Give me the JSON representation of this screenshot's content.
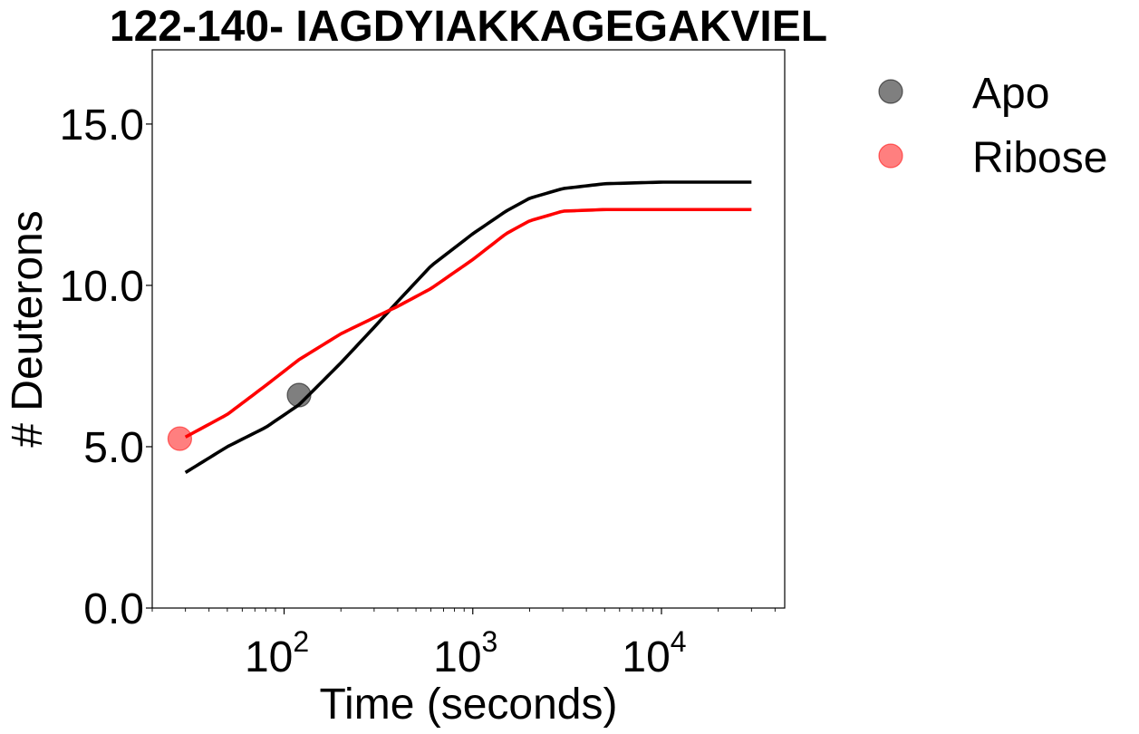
{
  "chart_data": {
    "type": "line",
    "title": "122-140- IAGDYIAKKAGEGAKVIEL",
    "xlabel": "Time (seconds)",
    "ylabel": "# Deuterons",
    "xscale": "log",
    "xlim": [
      20,
      45000
    ],
    "ylim": [
      0,
      17.3
    ],
    "xticks": [
      100,
      1000,
      10000
    ],
    "xtick_labels": [
      {
        "base": "10",
        "exp": "2"
      },
      {
        "base": "10",
        "exp": "3"
      },
      {
        "base": "10",
        "exp": "4"
      }
    ],
    "yticks": [
      0,
      5,
      10,
      15
    ],
    "ytick_labels": [
      "0.0",
      "5.0",
      "10.0",
      "15.0"
    ],
    "grid": false,
    "legend_placement": "outside-right",
    "series": [
      {
        "name": "Apo",
        "color": "#000000",
        "marker_color": "#000000",
        "points": [
          [
            120,
            6.6
          ]
        ],
        "curve_x": [
          30,
          50,
          80,
          120,
          200,
          300,
          400,
          600,
          1000,
          1500,
          2000,
          3000,
          5000,
          10000,
          30000
        ],
        "curve_y": [
          4.2,
          5.0,
          5.6,
          6.3,
          7.6,
          8.7,
          9.5,
          10.6,
          11.6,
          12.3,
          12.7,
          13.0,
          13.15,
          13.2,
          13.2
        ]
      },
      {
        "name": "Ribose",
        "color": "#ff0000",
        "marker_color": "#ff0000",
        "points": [
          [
            28,
            5.25
          ]
        ],
        "curve_x": [
          30,
          50,
          80,
          120,
          200,
          300,
          400,
          600,
          1000,
          1500,
          2000,
          3000,
          5000,
          10000,
          30000
        ],
        "curve_y": [
          5.3,
          6.0,
          6.9,
          7.7,
          8.5,
          9.0,
          9.35,
          9.9,
          10.8,
          11.6,
          12.0,
          12.3,
          12.35,
          12.35,
          12.35
        ]
      }
    ]
  }
}
